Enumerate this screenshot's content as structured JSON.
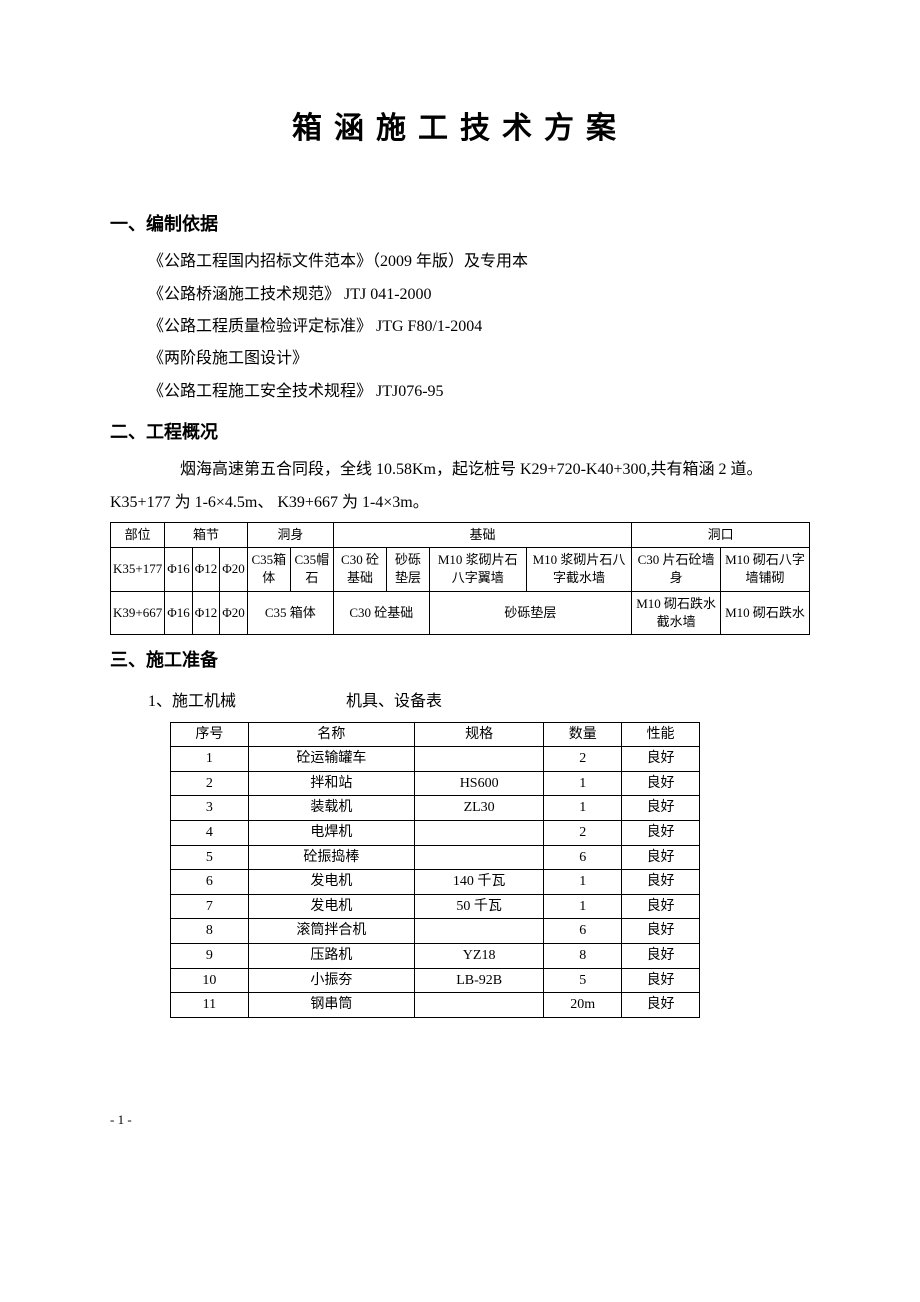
{
  "title": "箱涵施工技术方案",
  "sections": {
    "s1": {
      "heading": "一、编制依据",
      "lines": [
        "《公路工程国内招标文件范本》（2009 年版）及专用本",
        "《公路桥涵施工技术规范》  JTJ 041-2000",
        "《公路工程质量检验评定标准》  JTG F80/1-2004",
        "《两阶段施工图设计》",
        "《公路工程施工安全技术规程》  JTJ076-95"
      ]
    },
    "s2": {
      "heading": "二、工程概况",
      "para1": "烟海高速第五合同段，全线 10.58Km，起讫桩号 K29+720-K40+300,共有箱涵 2 道。",
      "para2": "K35+177 为 1-6×4.5m、 K39+667 为 1-4×3m。"
    },
    "s3": {
      "heading": "三、施工准备",
      "line1_left": "1、施工机械",
      "line1_right": "机具、设备表"
    }
  },
  "table1": {
    "headers": {
      "c1": "部位",
      "c2": "箱节",
      "c3": "洞身",
      "c4": "基础",
      "c5": "洞口"
    },
    "rows": [
      {
        "c1": "K35+177",
        "j1": "Φ16",
        "j2": "Φ12",
        "j3": "Φ20",
        "d1": "C35箱体",
        "d2": "C35帽石",
        "b1": "C30 砼基础",
        "b2": "砂砾垫层",
        "b3": "M10 浆砌片石八字翼墙",
        "b4": "M10 浆砌片石八字截水墙",
        "k1": "C30 片石砼墙身",
        "k2": "M10 砌石八字墙铺砌"
      },
      {
        "c1": "K39+667",
        "j1": "Φ16",
        "j2": "Φ12",
        "j3": "Φ20",
        "d1": "C35 箱体",
        "b1": "C30 砼基础",
        "b2": "砂砾垫层",
        "k1": "M10 砌石跌水截水墙",
        "k2": "M10 砌石跌水"
      }
    ]
  },
  "table2": {
    "columns": [
      "序号",
      "名称",
      "规格",
      "数量",
      "性能"
    ],
    "rows": [
      [
        "1",
        "砼运输罐车",
        "",
        "2",
        "良好"
      ],
      [
        "2",
        "拌和站",
        "HS600",
        "1",
        "良好"
      ],
      [
        "3",
        "装载机",
        "ZL30",
        "1",
        "良好"
      ],
      [
        "4",
        "电焊机",
        "",
        "2",
        "良好"
      ],
      [
        "5",
        "砼振捣棒",
        "",
        "6",
        "良好"
      ],
      [
        "6",
        "发电机",
        "140 千瓦",
        "1",
        "良好"
      ],
      [
        "7",
        "发电机",
        "50 千瓦",
        "1",
        "良好"
      ],
      [
        "8",
        "滚筒拌合机",
        "",
        "6",
        "良好"
      ],
      [
        "9",
        "压路机",
        "YZ18",
        "8",
        "良好"
      ],
      [
        "10",
        "小振夯",
        "LB-92B",
        "5",
        "良好"
      ],
      [
        "11",
        "钢串筒",
        "",
        "20m",
        "良好"
      ]
    ]
  },
  "pageNumber": "- 1 -"
}
